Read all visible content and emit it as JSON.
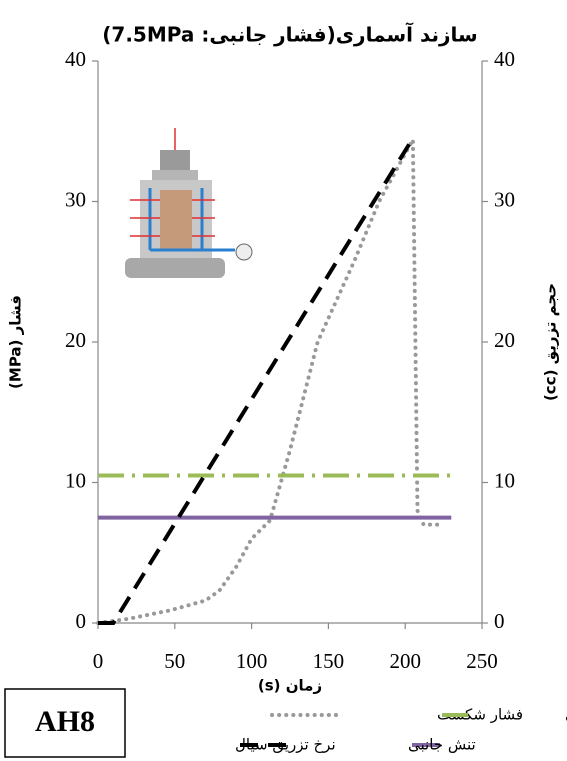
{
  "chart_data": {
    "type": "line",
    "title": "سازند آسماری(فشار جانبی: 7.5MPa)",
    "x_label": "زمان (s)",
    "y_label": "فشار (MPa)",
    "y2_label": "حجم تزریق (cc)",
    "annotation": "AH8",
    "xlim": [
      0,
      250
    ],
    "xticks": [
      0,
      50,
      100,
      150,
      200,
      250
    ],
    "ylim": [
      0,
      40
    ],
    "yticks": [
      0,
      10,
      20,
      30,
      40
    ],
    "y2lim": [
      0,
      40
    ],
    "y2ticks": [
      0,
      10,
      20,
      30,
      40
    ],
    "series": [
      {
        "name": "فشار شکست",
        "color": "#999999",
        "style": "dotted",
        "x": [
          0,
          20,
          47,
          70,
          79,
          90,
          100,
          112,
          125,
          143,
          167,
          183,
          205,
          208,
          212,
          225
        ],
        "values": [
          0,
          0.3,
          0.9,
          1.6,
          2.3,
          4,
          6,
          7.3,
          12.3,
          20,
          25.8,
          30,
          34.4,
          8,
          7,
          7
        ]
      },
      {
        "name": "تنش محوری",
        "color": "#9bbb59",
        "style": "dashdot",
        "x": [
          0,
          230
        ],
        "values": [
          10.5,
          10.5
        ]
      },
      {
        "name": "تنش جانبی",
        "color": "#8064a2",
        "style": "solid",
        "x": [
          0,
          230
        ],
        "values": [
          7.5,
          7.5
        ]
      },
      {
        "name": "نرخ تزریق سیال",
        "color": "#000000",
        "style": "dashed",
        "axis": "y2",
        "x": [
          0,
          10,
          205
        ],
        "values": [
          0,
          0,
          34.5
        ]
      }
    ]
  }
}
